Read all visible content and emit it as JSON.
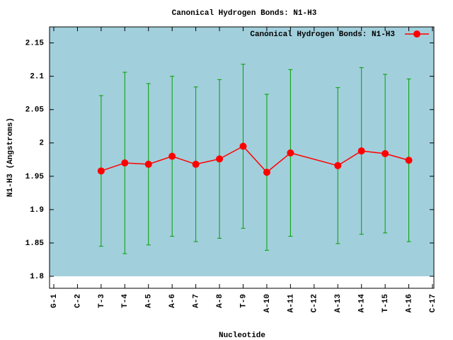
{
  "chart_data": {
    "type": "line",
    "title": "Canonical Hydrogen Bonds: N1-H3",
    "x_label": "Nucleotide",
    "y_label": "N1-H3 (Angstroms)",
    "categories": [
      "G-1",
      "C-2",
      "T-3",
      "T-4",
      "A-5",
      "A-6",
      "A-7",
      "A-8",
      "T-9",
      "A-10",
      "A-11",
      "C-12",
      "A-13",
      "A-14",
      "T-15",
      "A-16",
      "C-17"
    ],
    "series": [
      {
        "name": "Canonical Hydrogen Bonds: N1-H3",
        "color": "#ff0000",
        "error_color": "#00a000",
        "values": [
          null,
          null,
          1.958,
          1.97,
          1.968,
          1.98,
          1.968,
          1.976,
          1.995,
          1.956,
          1.985,
          null,
          1.966,
          1.988,
          1.984,
          1.974,
          null
        ],
        "errors": [
          null,
          null,
          0.113,
          0.136,
          0.121,
          0.12,
          0.116,
          0.119,
          0.123,
          0.117,
          0.125,
          null,
          0.117,
          0.125,
          0.119,
          0.122,
          null
        ]
      }
    ],
    "ylim": [
      1.782,
      2.174
    ],
    "yticks": [
      1.8,
      1.85,
      1.9,
      1.95,
      2,
      2.05,
      2.1,
      2.15
    ],
    "background": "#a2cfdc",
    "legend": "top-right"
  }
}
